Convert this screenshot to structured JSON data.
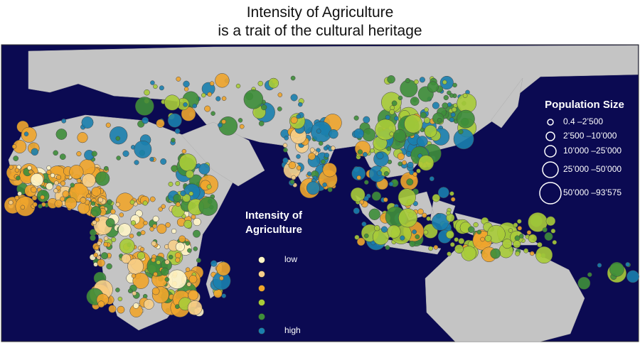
{
  "title": [
    "Intensity of Agriculture",
    "is a trait of the cultural heritage"
  ],
  "intensity_legend": {
    "title": [
      "Intensity of",
      "Agriculture"
    ],
    "levels": [
      {
        "label": "low",
        "color": "#fff5c8"
      },
      {
        "color": "#f7cf8a"
      },
      {
        "color": "#f0a52c"
      },
      {
        "color": "#a8cc38"
      },
      {
        "color": "#3e8e3a"
      },
      {
        "label": "high",
        "color": "#1a7fae"
      }
    ]
  },
  "population_legend": {
    "title": "Population Size",
    "sizes": [
      {
        "label": "0.4 –2’500"
      },
      {
        "label": "2’500 –10’000"
      },
      {
        "label": "10’000 –25’000"
      },
      {
        "label": "25’000 –50’000"
      },
      {
        "label": "50’000 –93’575"
      }
    ]
  }
}
